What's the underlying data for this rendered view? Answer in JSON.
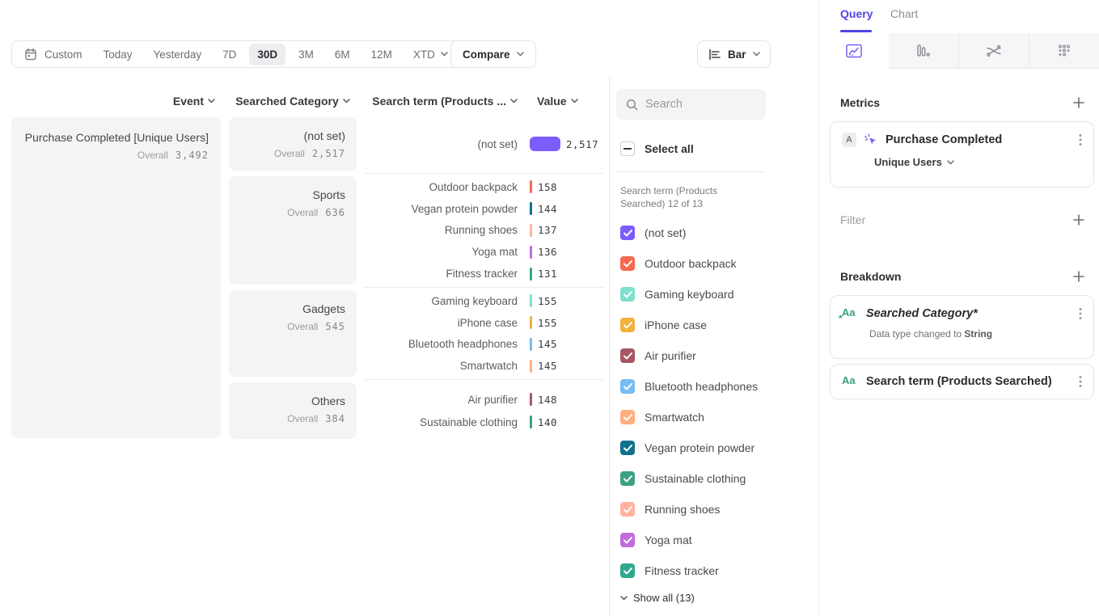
{
  "labels": {
    "overall": "Overall"
  },
  "toolbar": {
    "ranges": [
      {
        "label": "Custom",
        "icon": "calendar-icon",
        "sep": true
      },
      {
        "label": "Today",
        "sep": true
      },
      {
        "label": "Yesterday",
        "sep": true
      },
      {
        "label": "7D"
      },
      {
        "label": "30D",
        "cls": "active"
      },
      {
        "label": "3M"
      },
      {
        "label": "6M"
      },
      {
        "label": "12M"
      },
      {
        "label": "XTD",
        "chevron": true
      }
    ],
    "compare_label": "Compare",
    "chart_type_label": "Bar"
  },
  "table": {
    "headers": {
      "event": "Event",
      "category": "Searched Category",
      "term": "Search term (Products ...",
      "value": "Value"
    },
    "event": {
      "name": "Purchase Completed [Unique Users]",
      "overall": "3,492"
    }
  },
  "chart_data": {
    "type": "bar",
    "title": "Purchase Completed [Unique Users] broken down by Searched Category and Search term (Products Searched)",
    "overall_total": 3492,
    "value_axis_max": 2517,
    "groups": [
      {
        "category": "(not set)",
        "overall": "2,517",
        "overall_num": 2517,
        "rows": [
          {
            "term": "(not set)",
            "value": 2517,
            "display": "2,517",
            "color": "#7c5cfc"
          }
        ]
      },
      {
        "category": "Sports",
        "overall": "636",
        "overall_num": 636,
        "rows": [
          {
            "term": "Outdoor backpack",
            "value": 158,
            "display": "158",
            "color": "#f8684e"
          },
          {
            "term": "Vegan protein powder",
            "value": 144,
            "display": "144",
            "color": "#10718f"
          },
          {
            "term": "Running shoes",
            "value": 137,
            "display": "137",
            "color": "#ffb3a0"
          },
          {
            "term": "Yoga mat",
            "value": 136,
            "display": "136",
            "color": "#c36bdb"
          },
          {
            "term": "Fitness tracker",
            "value": 131,
            "display": "131",
            "color": "#2ea98c"
          }
        ]
      },
      {
        "category": "Gadgets",
        "overall": "545",
        "overall_num": 545,
        "rows": [
          {
            "term": "Gaming keyboard",
            "value": 155,
            "display": "155",
            "color": "#7ee0cd"
          },
          {
            "term": "iPhone case",
            "value": 155,
            "display": "155",
            "color": "#f2b13d"
          },
          {
            "term": "Bluetooth headphones",
            "value": 145,
            "display": "145",
            "color": "#77bcf2"
          },
          {
            "term": "Smartwatch",
            "value": 145,
            "display": "145",
            "color": "#ffb07e"
          }
        ]
      },
      {
        "category": "Others",
        "overall": "384",
        "overall_num": 384,
        "rows": [
          {
            "term": "Air purifier",
            "value": 148,
            "display": "148",
            "color": "#a85665"
          },
          {
            "term": "Sustainable clothing",
            "value": 140,
            "display": "140",
            "color": "#3ca183"
          }
        ]
      }
    ]
  },
  "filter_panel": {
    "search_placeholder": "Search",
    "select_all_label": "Select all",
    "caption": "Search term (Products Searched) 12 of 13",
    "items": [
      {
        "label": "(not set)",
        "color": "#7c5cfc"
      },
      {
        "label": "Outdoor backpack",
        "color": "#f8684e"
      },
      {
        "label": "Gaming keyboard",
        "color": "#7ee0cd"
      },
      {
        "label": "iPhone case",
        "color": "#f2b13d"
      },
      {
        "label": "Air purifier",
        "color": "#a85665"
      },
      {
        "label": "Bluetooth headphones",
        "color": "#77bcf2"
      },
      {
        "label": "Smartwatch",
        "color": "#ffb07e"
      },
      {
        "label": "Vegan protein powder",
        "color": "#10718f"
      },
      {
        "label": "Sustainable clothing",
        "color": "#3ca183"
      },
      {
        "label": "Running shoes",
        "color": "#ffb3a0"
      },
      {
        "label": "Yoga mat",
        "color": "#c36bdb"
      },
      {
        "label": "Fitness tracker",
        "color": "#2ea98c"
      }
    ],
    "show_all_label": "Show all (13)"
  },
  "query_panel": {
    "tabs": {
      "query": "Query",
      "chart": "Chart"
    },
    "icon_tabs": [
      {
        "icon": "line-chart-icon",
        "active": true
      },
      {
        "icon": "bar-funnel-icon"
      },
      {
        "icon": "flows-icon"
      },
      {
        "icon": "retention-dots-icon"
      }
    ],
    "metrics": {
      "title": "Metrics",
      "card": {
        "badge": "A",
        "name": "Purchase Completed",
        "measure": "Unique Users"
      }
    },
    "filter": {
      "title": "Filter"
    },
    "breakdown": {
      "title": "Breakdown",
      "cards": [
        {
          "icon": "Aa",
          "name": "Searched Category*",
          "italic": true,
          "star": true,
          "note_prefix": "Data type changed to ",
          "note_bold": "String"
        },
        {
          "icon": "Aa",
          "name": "Search term (Products Searched)"
        }
      ]
    },
    "accent_color": "#5046e4"
  }
}
